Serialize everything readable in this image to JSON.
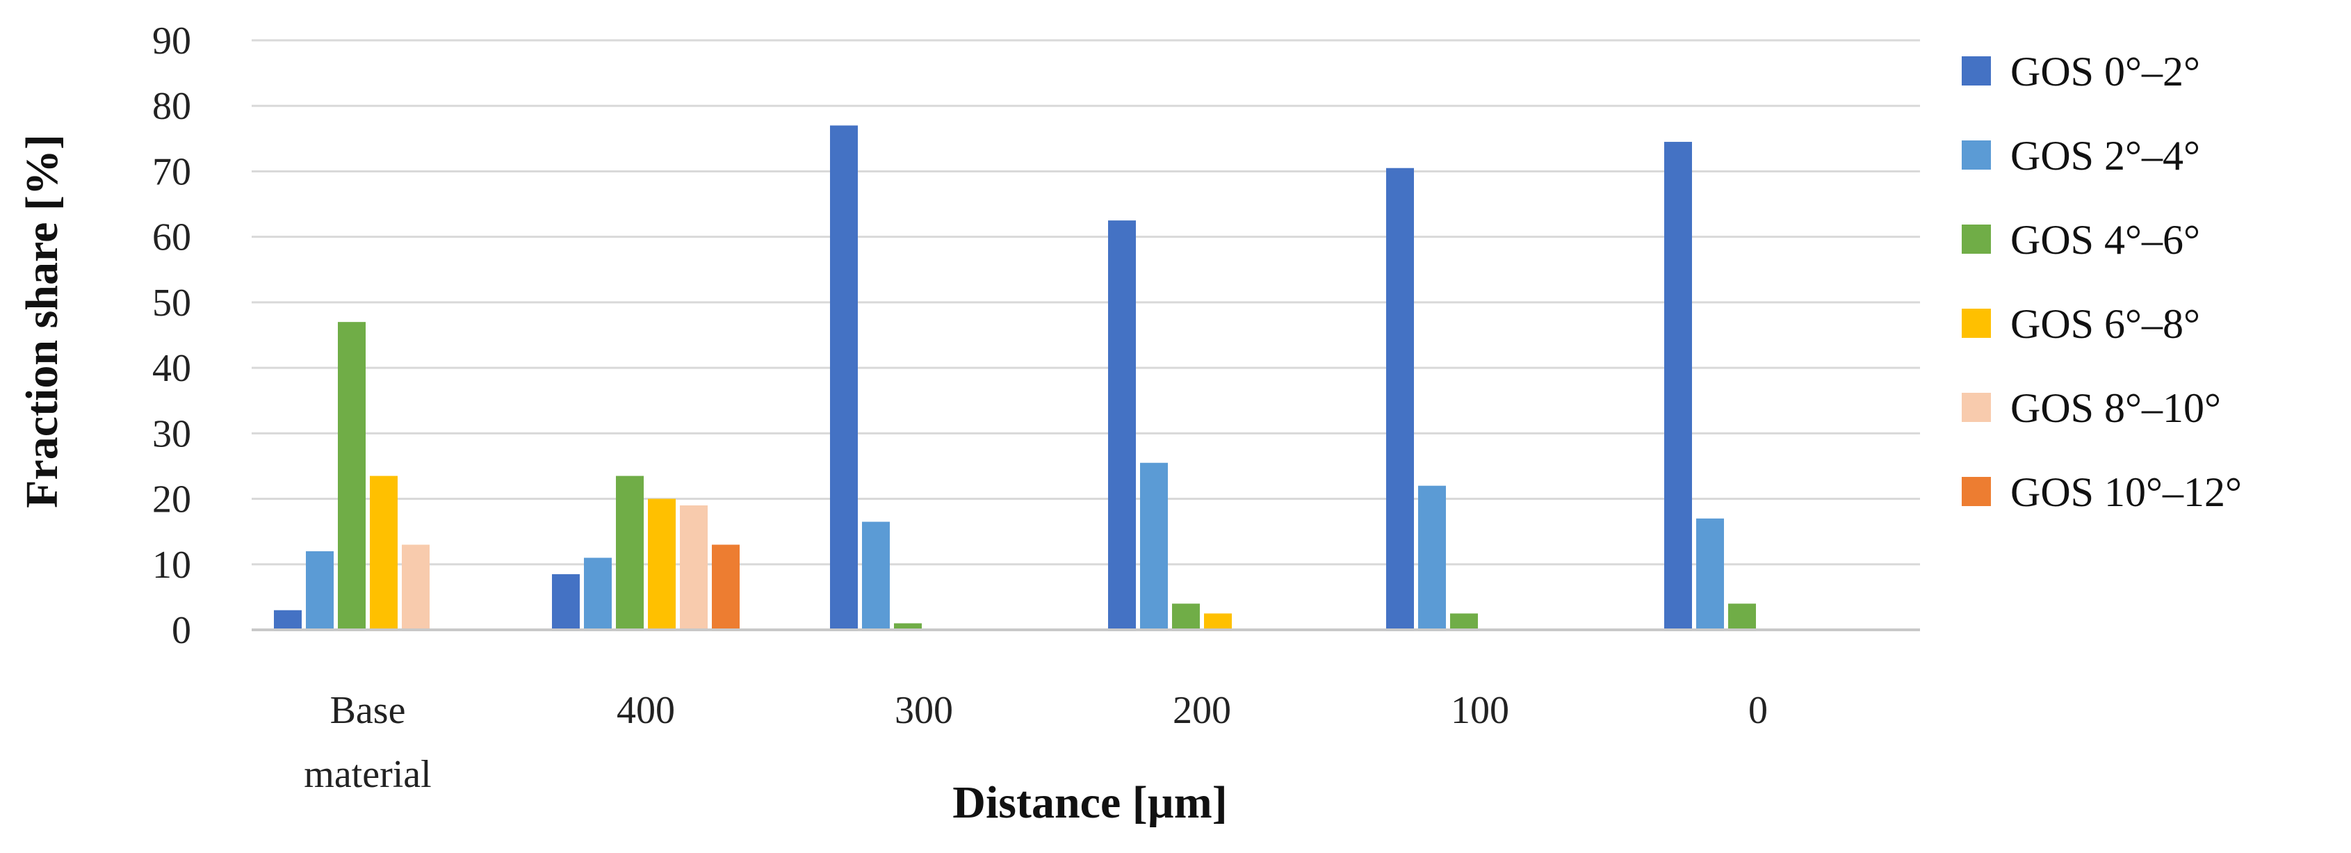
{
  "chart_data": {
    "type": "bar",
    "categories": [
      [
        "Base",
        "material"
      ],
      [
        "400"
      ],
      [
        "300"
      ],
      [
        "200"
      ],
      [
        "100"
      ],
      [
        "0"
      ]
    ],
    "series": [
      {
        "name": "GOS 0°–2°",
        "color": "#4472c4",
        "values": [
          3,
          8.5,
          77,
          62.5,
          70.5,
          74.5
        ]
      },
      {
        "name": "GOS 2°–4°",
        "color": "#5b9bd5",
        "values": [
          12,
          11,
          16.5,
          25.5,
          22,
          17
        ]
      },
      {
        "name": "GOS 4°–6°",
        "color": "#70ad47",
        "values": [
          47,
          23.5,
          1,
          4,
          2.5,
          4
        ]
      },
      {
        "name": "GOS 6°–8°",
        "color": "#ffc000",
        "values": [
          23.5,
          20,
          0,
          2.5,
          0,
          0
        ]
      },
      {
        "name": "GOS 8°–10°",
        "color": "#f8cbad",
        "values": [
          13,
          19,
          0,
          0,
          0,
          0
        ]
      },
      {
        "name": "GOS 10°–12°",
        "color": "#ed7d31",
        "values": [
          0,
          13,
          0,
          0,
          0,
          0
        ]
      }
    ],
    "title": "",
    "xlabel": "Distance [µm]",
    "ylabel": "Fraction share [%]",
    "ylim": [
      0,
      90
    ],
    "yticks": [
      0,
      10,
      20,
      30,
      40,
      50,
      60,
      70,
      80,
      90
    ],
    "grid": true,
    "legend_position": "right"
  }
}
